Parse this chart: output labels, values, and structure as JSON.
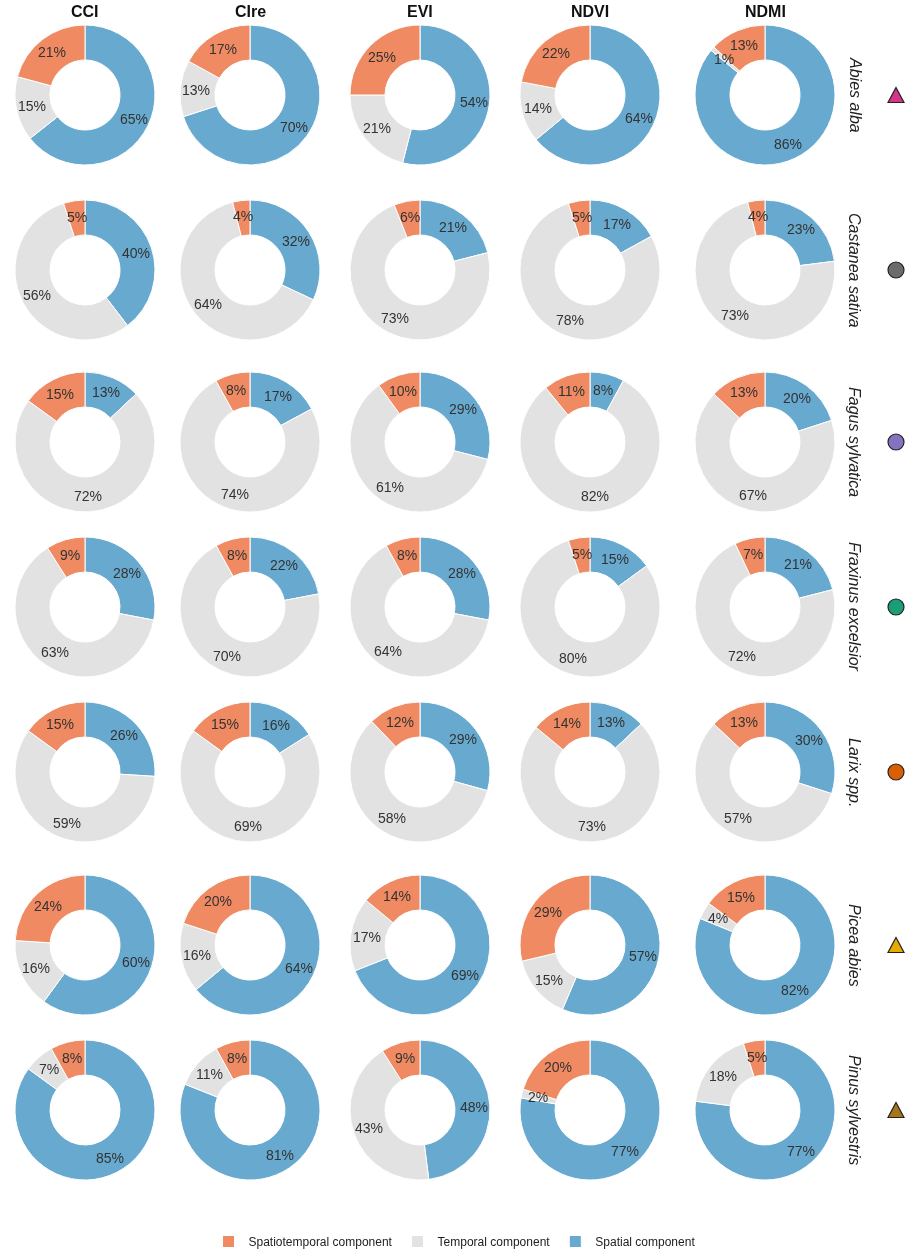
{
  "chart_data": [
    {
      "type": "donut",
      "title": "CCI",
      "legend": "bottom",
      "categories": [
        "Spatial component",
        "Temporal component",
        "Spatiotemporal component"
      ],
      "values": [
        65,
        15,
        21
      ],
      "value_labels": [
        "65%",
        "15%",
        "21%"
      ],
      "colors": [
        "#67a9cf",
        "#e2e2e2",
        "#ef8a62"
      ]
    },
    {
      "type": "donut",
      "title": "CIre",
      "values": [
        70,
        13,
        17
      ],
      "value_labels": [
        "70%",
        "13%",
        "17%"
      ],
      "colors": [
        "#67a9cf",
        "#e2e2e2",
        "#ef8a62"
      ]
    },
    {
      "type": "donut",
      "title": "EVI",
      "values": [
        54,
        21,
        25
      ],
      "value_labels": [
        "54%",
        "21%",
        "25%"
      ],
      "colors": [
        "#67a9cf",
        "#e2e2e2",
        "#ef8a62"
      ]
    },
    {
      "type": "donut",
      "title": "NDVI",
      "values": [
        64,
        14,
        22
      ],
      "value_labels": [
        "64%",
        "14%",
        "22%"
      ],
      "colors": [
        "#67a9cf",
        "#e2e2e2",
        "#ef8a62"
      ]
    },
    {
      "type": "donut",
      "title": "NDMI",
      "y2label": "Abies alba",
      "values": [
        86,
        1,
        13
      ],
      "value_labels": [
        "86%",
        "1%",
        "13%"
      ],
      "colors": [
        "#67a9cf",
        "#e2e2e2",
        "#ef8a62"
      ]
    },
    {
      "type": "donut",
      "values": [
        40,
        56,
        5
      ],
      "value_labels": [
        "40%",
        "56%",
        "5%"
      ],
      "colors": [
        "#67a9cf",
        "#e2e2e2",
        "#ef8a62"
      ]
    },
    {
      "type": "donut",
      "values": [
        32,
        64,
        4
      ],
      "value_labels": [
        "32%",
        "64%",
        "4%"
      ],
      "colors": [
        "#67a9cf",
        "#e2e2e2",
        "#ef8a62"
      ]
    },
    {
      "type": "donut",
      "values": [
        21,
        73,
        6
      ],
      "value_labels": [
        "21%",
        "73%",
        "6%"
      ],
      "colors": [
        "#67a9cf",
        "#e2e2e2",
        "#ef8a62"
      ]
    },
    {
      "type": "donut",
      "values": [
        17,
        78,
        5
      ],
      "value_labels": [
        "17%",
        "78%",
        "5%"
      ],
      "colors": [
        "#67a9cf",
        "#e2e2e2",
        "#ef8a62"
      ]
    },
    {
      "type": "donut",
      "y2label": "Castanea sativa",
      "values": [
        23,
        73,
        4
      ],
      "value_labels": [
        "23%",
        "73%",
        "4%"
      ],
      "colors": [
        "#67a9cf",
        "#e2e2e2",
        "#ef8a62"
      ]
    },
    {
      "type": "donut",
      "values": [
        13,
        72,
        15
      ],
      "value_labels": [
        "13%",
        "72%",
        "15%"
      ],
      "colors": [
        "#67a9cf",
        "#e2e2e2",
        "#ef8a62"
      ]
    },
    {
      "type": "donut",
      "values": [
        17,
        74,
        8
      ],
      "value_labels": [
        "17%",
        "74%",
        "8%"
      ],
      "colors": [
        "#67a9cf",
        "#e2e2e2",
        "#ef8a62"
      ]
    },
    {
      "type": "donut",
      "values": [
        29,
        61,
        10
      ],
      "value_labels": [
        "29%",
        "61%",
        "10%"
      ],
      "colors": [
        "#67a9cf",
        "#e2e2e2",
        "#ef8a62"
      ]
    },
    {
      "type": "donut",
      "values": [
        8,
        82,
        11
      ],
      "value_labels": [
        "8%",
        "82%",
        "11%"
      ],
      "colors": [
        "#67a9cf",
        "#e2e2e2",
        "#ef8a62"
      ]
    },
    {
      "type": "donut",
      "y2label": "Fagus sylvatica",
      "values": [
        20,
        67,
        13
      ],
      "value_labels": [
        "20%",
        "67%",
        "13%"
      ],
      "colors": [
        "#67a9cf",
        "#e2e2e2",
        "#ef8a62"
      ]
    },
    {
      "type": "donut",
      "values": [
        28,
        63,
        9
      ],
      "value_labels": [
        "28%",
        "63%",
        "9%"
      ],
      "colors": [
        "#67a9cf",
        "#e2e2e2",
        "#ef8a62"
      ]
    },
    {
      "type": "donut",
      "values": [
        22,
        70,
        8
      ],
      "value_labels": [
        "22%",
        "70%",
        "8%"
      ],
      "colors": [
        "#67a9cf",
        "#e2e2e2",
        "#ef8a62"
      ]
    },
    {
      "type": "donut",
      "values": [
        28,
        64,
        8
      ],
      "value_labels": [
        "28%",
        "64%",
        "8%"
      ],
      "colors": [
        "#67a9cf",
        "#e2e2e2",
        "#ef8a62"
      ]
    },
    {
      "type": "donut",
      "values": [
        15,
        80,
        5
      ],
      "value_labels": [
        "15%",
        "80%",
        "5%"
      ],
      "colors": [
        "#67a9cf",
        "#e2e2e2",
        "#ef8a62"
      ]
    },
    {
      "type": "donut",
      "y2label": "Fraxinus excelsior",
      "values": [
        21,
        72,
        7
      ],
      "value_labels": [
        "21%",
        "72%",
        "7%"
      ],
      "colors": [
        "#67a9cf",
        "#e2e2e2",
        "#ef8a62"
      ]
    },
    {
      "type": "donut",
      "values": [
        26,
        59,
        15
      ],
      "value_labels": [
        "26%",
        "59%",
        "15%"
      ],
      "colors": [
        "#67a9cf",
        "#e2e2e2",
        "#ef8a62"
      ]
    },
    {
      "type": "donut",
      "values": [
        16,
        69,
        15
      ],
      "value_labels": [
        "16%",
        "69%",
        "15%"
      ],
      "colors": [
        "#67a9cf",
        "#e2e2e2",
        "#ef8a62"
      ]
    },
    {
      "type": "donut",
      "values": [
        29,
        58,
        12
      ],
      "value_labels": [
        "29%",
        "58%",
        "12%"
      ],
      "colors": [
        "#67a9cf",
        "#e2e2e2",
        "#ef8a62"
      ]
    },
    {
      "type": "donut",
      "values": [
        13,
        73,
        14
      ],
      "value_labels": [
        "13%",
        "73%",
        "14%"
      ],
      "colors": [
        "#67a9cf",
        "#e2e2e2",
        "#ef8a62"
      ]
    },
    {
      "type": "donut",
      "y2label": "Larix spp.",
      "values": [
        30,
        57,
        13
      ],
      "value_labels": [
        "30%",
        "57%",
        "13%"
      ],
      "colors": [
        "#67a9cf",
        "#e2e2e2",
        "#ef8a62"
      ]
    },
    {
      "type": "donut",
      "values": [
        60,
        16,
        24
      ],
      "value_labels": [
        "60%",
        "16%",
        "24%"
      ],
      "colors": [
        "#67a9cf",
        "#e2e2e2",
        "#ef8a62"
      ]
    },
    {
      "type": "donut",
      "values": [
        64,
        16,
        20
      ],
      "value_labels": [
        "64%",
        "16%",
        "20%"
      ],
      "colors": [
        "#67a9cf",
        "#e2e2e2",
        "#ef8a62"
      ]
    },
    {
      "type": "donut",
      "values": [
        69,
        17,
        14
      ],
      "value_labels": [
        "69%",
        "17%",
        "14%"
      ],
      "colors": [
        "#67a9cf",
        "#e2e2e2",
        "#ef8a62"
      ]
    },
    {
      "type": "donut",
      "values": [
        57,
        15,
        29
      ],
      "value_labels": [
        "57%",
        "15%",
        "29%"
      ],
      "colors": [
        "#67a9cf",
        "#e2e2e2",
        "#ef8a62"
      ]
    },
    {
      "type": "donut",
      "y2label": "Picea abies",
      "values": [
        82,
        4,
        15
      ],
      "value_labels": [
        "82%",
        "4%",
        "15%"
      ],
      "colors": [
        "#67a9cf",
        "#e2e2e2",
        "#ef8a62"
      ]
    },
    {
      "type": "donut",
      "values": [
        85,
        7,
        8
      ],
      "value_labels": [
        "85%",
        "7%",
        "8%"
      ],
      "colors": [
        "#67a9cf",
        "#e2e2e2",
        "#ef8a62"
      ]
    },
    {
      "type": "donut",
      "values": [
        81,
        11,
        8
      ],
      "value_labels": [
        "81%",
        "11%",
        "8%"
      ],
      "colors": [
        "#67a9cf",
        "#e2e2e2",
        "#ef8a62"
      ]
    },
    {
      "type": "donut",
      "values": [
        48,
        43,
        9
      ],
      "value_labels": [
        "48%",
        "43%",
        "9%"
      ],
      "colors": [
        "#67a9cf",
        "#e2e2e2",
        "#ef8a62"
      ]
    },
    {
      "type": "donut",
      "values": [
        77,
        2,
        20
      ],
      "value_labels": [
        "77%",
        "2%",
        "20%"
      ],
      "colors": [
        "#67a9cf",
        "#e2e2e2",
        "#ef8a62"
      ]
    },
    {
      "type": "donut",
      "y2label": "Pinus sylvestris",
      "values": [
        77,
        18,
        5
      ],
      "value_labels": [
        "77%",
        "18%",
        "5%"
      ],
      "colors": [
        "#67a9cf",
        "#e2e2e2",
        "#ef8a62"
      ]
    }
  ]
}
